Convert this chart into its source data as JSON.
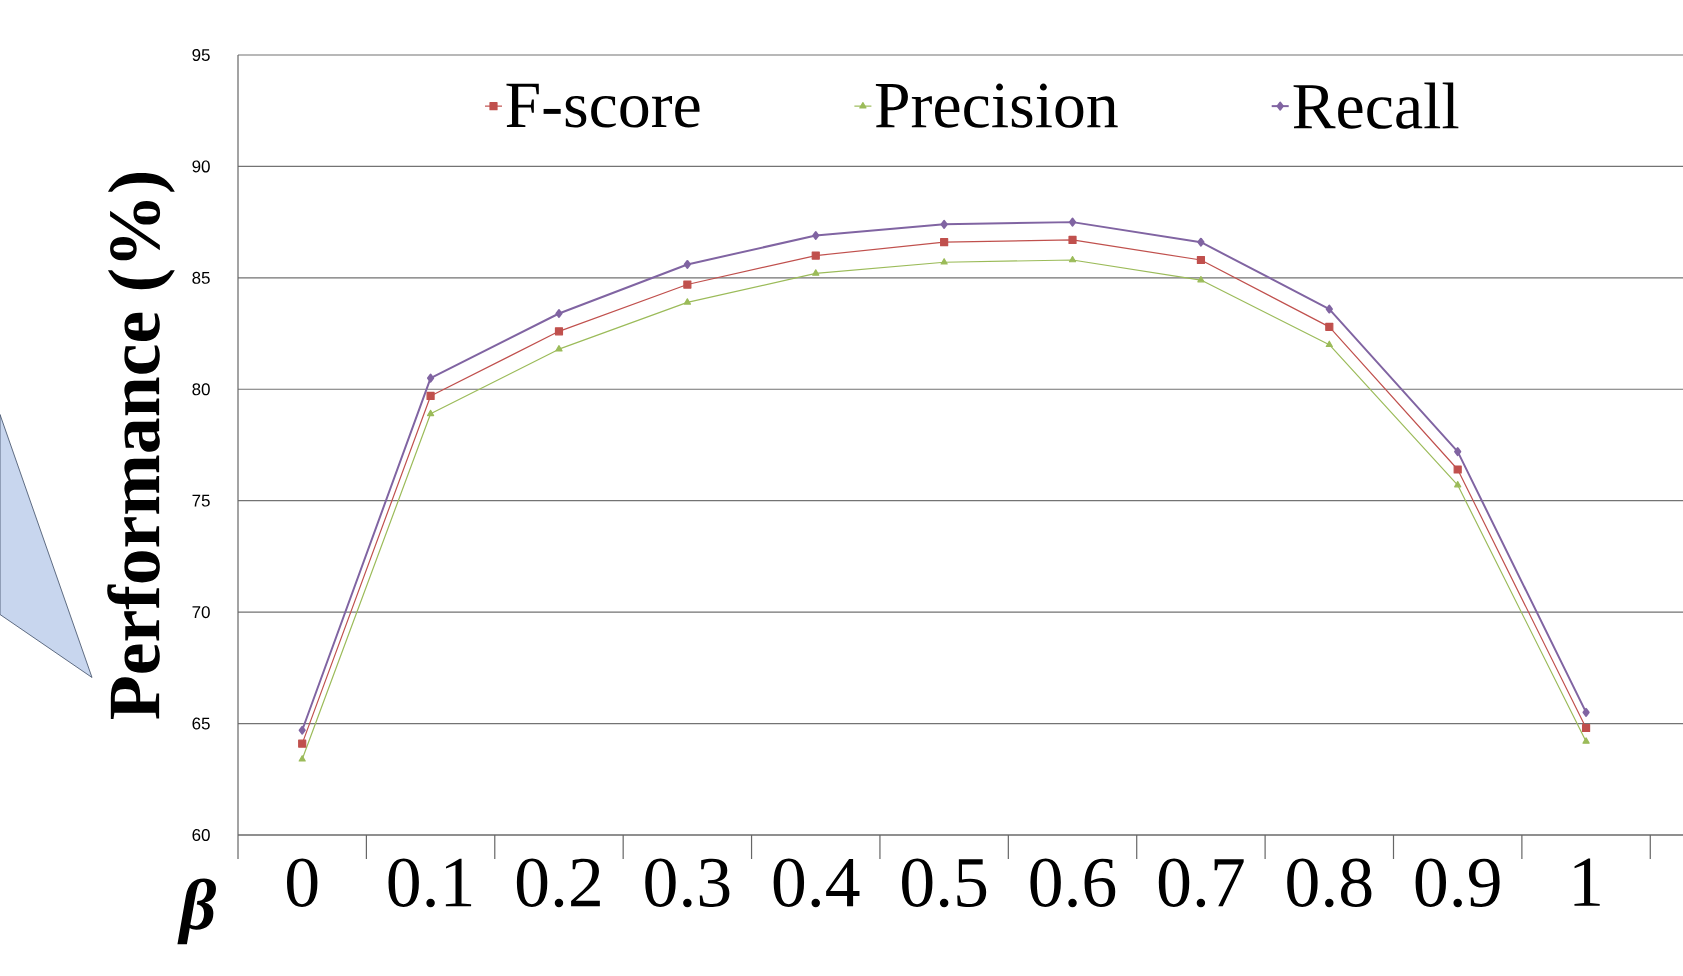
{
  "chart_data": {
    "type": "line",
    "xlabel": "β",
    "ylabel": "Performance (%)",
    "categories": [
      "0",
      "0.1",
      "0.2",
      "0.3",
      "0.4",
      "0.5",
      "0.6",
      "0.7",
      "0.8",
      "0.9",
      "1"
    ],
    "series": [
      {
        "name": "F-score",
        "color": "#c0504d",
        "marker": "square",
        "values": [
          64.1,
          79.7,
          82.6,
          84.7,
          86.0,
          86.6,
          86.7,
          85.8,
          82.8,
          76.4,
          64.8
        ]
      },
      {
        "name": "Precision",
        "color": "#9bbb59",
        "marker": "triangle",
        "values": [
          63.4,
          78.9,
          81.8,
          83.9,
          85.2,
          85.7,
          85.8,
          84.9,
          82.0,
          75.7,
          64.2
        ]
      },
      {
        "name": "Recall",
        "color": "#8064a2",
        "marker": "diamond",
        "values": [
          64.7,
          80.5,
          83.4,
          85.6,
          86.9,
          87.4,
          87.5,
          86.6,
          83.6,
          77.2,
          65.5
        ]
      }
    ],
    "ylim": [
      60,
      95
    ],
    "yticks": [
      60,
      65,
      70,
      75,
      80,
      85,
      90,
      95
    ],
    "grid": "y",
    "legend": "top",
    "line_style": "solid"
  }
}
